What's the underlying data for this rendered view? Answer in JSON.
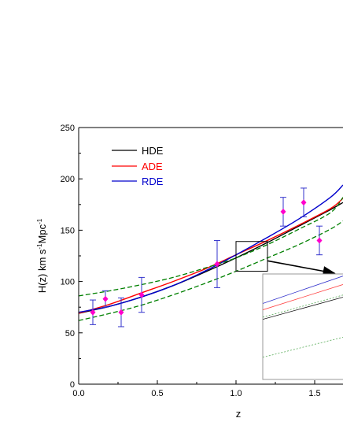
{
  "chart_data": {
    "type": "line",
    "xlabel": "z",
    "ylabel": "H(z) km s",
    "ylabel_sup1": "-1",
    "ylabel_mid": "Mpc",
    "ylabel_sup2": "-1",
    "xlim": [
      0.0,
      1.68
    ],
    "ylim": [
      0,
      250
    ],
    "x_ticks": [
      "0.0",
      "0.5",
      "1.0",
      "1.5"
    ],
    "y_ticks": [
      "0",
      "50",
      "100",
      "150",
      "200",
      "250"
    ],
    "grid": false,
    "legend_position": "top-left",
    "series": [
      {
        "name": "HDE",
        "color": "#000000",
        "style": "solid",
        "x": [
          0,
          0.2,
          0.4,
          0.6,
          0.8,
          1.0,
          1.2,
          1.4,
          1.6,
          1.68
        ],
        "y": [
          69,
          76,
          85,
          96,
          109,
          123,
          138,
          154,
          170,
          177
        ]
      },
      {
        "name": "ADE",
        "color": "#ff0000",
        "style": "solid",
        "x": [
          0,
          0.2,
          0.4,
          0.6,
          0.8,
          1.0,
          1.2,
          1.4,
          1.6,
          1.68
        ],
        "y": [
          69,
          78,
          89,
          100,
          112,
          126,
          140,
          155,
          171,
          181
        ]
      },
      {
        "name": "RDE",
        "color": "#0000cc",
        "style": "solid",
        "x": [
          0,
          0.2,
          0.4,
          0.6,
          0.8,
          1.0,
          1.2,
          1.4,
          1.6,
          1.68
        ],
        "y": [
          70,
          76,
          85,
          96,
          110,
          126,
          143,
          161,
          182,
          194
        ]
      },
      {
        "name": "",
        "color": "#008000",
        "style": "dashed",
        "x": [
          0,
          0.2,
          0.4,
          0.6,
          0.8,
          1.0,
          1.2,
          1.4,
          1.6,
          1.68
        ],
        "y": [
          86,
          91,
          97,
          104,
          113,
          123,
          136,
          151,
          167,
          182
        ]
      },
      {
        "name": "",
        "color": "#008000",
        "style": "dashed",
        "x": [
          0,
          0.2,
          0.4,
          0.6,
          0.8,
          1.0,
          1.2,
          1.4,
          1.6,
          1.68
        ],
        "y": [
          62,
          69,
          77,
          87,
          98,
          110,
          123,
          136,
          151,
          159
        ]
      }
    ],
    "observations": {
      "marker_color": "#ff00cc",
      "errorbar_color": "#3333cc",
      "points": [
        {
          "x": 0.09,
          "y": 70,
          "err": 12
        },
        {
          "x": 0.17,
          "y": 83,
          "err": 8
        },
        {
          "x": 0.27,
          "y": 70,
          "err": 14
        },
        {
          "x": 0.4,
          "y": 87,
          "err": 17
        },
        {
          "x": 0.88,
          "y": 117,
          "err": 23
        },
        {
          "x": 1.3,
          "y": 168,
          "err": 14
        },
        {
          "x": 1.43,
          "y": 177,
          "err": 14
        },
        {
          "x": 1.53,
          "y": 140,
          "err": 14
        }
      ]
    },
    "zoom_box": {
      "x0": 1.0,
      "x1": 1.2,
      "y0": 110,
      "y1": 139
    },
    "inset": {
      "lines": [
        {
          "color": "#3333cc",
          "y0": 0.28,
          "y1": 0.02
        },
        {
          "color": "#ff4444",
          "y0": 0.34,
          "y1": 0.1
        },
        {
          "color": "#55aa55",
          "y0": 0.41,
          "y1": 0.2
        },
        {
          "color": "#111111",
          "y0": 0.43,
          "y1": 0.22
        },
        {
          "color": "#55aa55",
          "y0": 0.79,
          "y1": 0.6
        }
      ]
    }
  }
}
